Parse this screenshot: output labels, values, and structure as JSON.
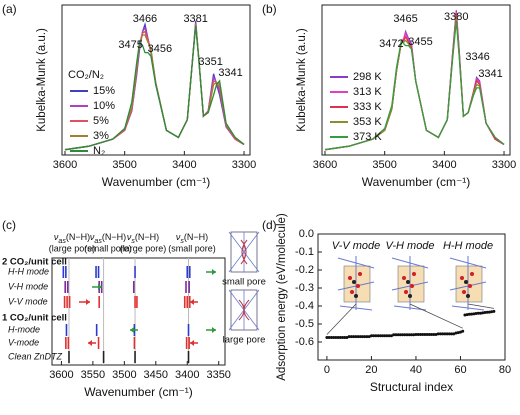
{
  "chart_data": [
    {
      "type": "line",
      "label": "(a)",
      "xlabel": "Wavenumber (cm⁻¹)",
      "ylabel": "Kubelka-Munk (a.u.)",
      "xlim": [
        3605,
        3290
      ],
      "xticks": [
        3600,
        3500,
        3400,
        3300
      ],
      "ylim": [
        0,
        0.85
      ],
      "legend_title": "CO₂/N₂",
      "legend": "lower left",
      "peak_labels": [
        3475,
        3466,
        3456,
        3381,
        3351,
        3341
      ],
      "x": [
        3600,
        3560,
        3520,
        3500,
        3488,
        3480,
        3475,
        3470,
        3466,
        3461,
        3456,
        3448,
        3430,
        3410,
        3395,
        3386,
        3381,
        3376,
        3368,
        3360,
        3351,
        3346,
        3341,
        3330,
        3315,
        3300
      ],
      "series": [
        {
          "name": "15%",
          "color": "#4040c0",
          "values": [
            0.03,
            0.05,
            0.09,
            0.14,
            0.25,
            0.45,
            0.6,
            0.7,
            0.74,
            0.66,
            0.58,
            0.4,
            0.14,
            0.1,
            0.2,
            0.55,
            0.76,
            0.55,
            0.22,
            0.25,
            0.46,
            0.4,
            0.34,
            0.16,
            0.09,
            0.06
          ]
        },
        {
          "name": "10%",
          "color": "#b040c0",
          "values": [
            0.03,
            0.05,
            0.09,
            0.14,
            0.25,
            0.46,
            0.62,
            0.7,
            0.72,
            0.66,
            0.59,
            0.41,
            0.14,
            0.1,
            0.2,
            0.55,
            0.75,
            0.55,
            0.22,
            0.25,
            0.44,
            0.41,
            0.36,
            0.16,
            0.09,
            0.06
          ]
        },
        {
          "name": "5%",
          "color": "#e05060",
          "values": [
            0.03,
            0.05,
            0.09,
            0.14,
            0.26,
            0.48,
            0.63,
            0.69,
            0.7,
            0.65,
            0.6,
            0.41,
            0.14,
            0.1,
            0.2,
            0.55,
            0.74,
            0.55,
            0.22,
            0.25,
            0.42,
            0.41,
            0.38,
            0.17,
            0.09,
            0.06
          ]
        },
        {
          "name": "3%",
          "color": "#a08030",
          "values": [
            0.03,
            0.05,
            0.09,
            0.15,
            0.27,
            0.49,
            0.64,
            0.68,
            0.68,
            0.64,
            0.6,
            0.41,
            0.14,
            0.1,
            0.2,
            0.55,
            0.74,
            0.55,
            0.22,
            0.24,
            0.4,
            0.41,
            0.4,
            0.17,
            0.1,
            0.06
          ]
        },
        {
          "name": "N₂",
          "color": "#2e8b3a",
          "values": [
            0.03,
            0.05,
            0.09,
            0.15,
            0.3,
            0.52,
            0.64,
            0.62,
            0.58,
            0.58,
            0.56,
            0.4,
            0.14,
            0.1,
            0.2,
            0.55,
            0.73,
            0.55,
            0.22,
            0.24,
            0.34,
            0.4,
            0.42,
            0.18,
            0.1,
            0.06
          ]
        }
      ]
    },
    {
      "type": "line",
      "label": "(b)",
      "xlabel": "Wavenumber (cm⁻¹)",
      "ylabel": "Kubelka-Munk (a.u.)",
      "xlim": [
        3605,
        3290
      ],
      "xticks": [
        3600,
        3500,
        3400,
        3300
      ],
      "ylim": [
        0,
        0.85
      ],
      "legend": "lower left",
      "peak_labels": [
        3472,
        3465,
        3455,
        3380,
        3346,
        3341
      ],
      "x": [
        3600,
        3560,
        3520,
        3500,
        3488,
        3480,
        3472,
        3468,
        3465,
        3460,
        3455,
        3448,
        3430,
        3410,
        3395,
        3386,
        3380,
        3375,
        3368,
        3360,
        3351,
        3346,
        3341,
        3330,
        3315,
        3300
      ],
      "series": [
        {
          "name": "298 K",
          "color": "#8a3cc8",
          "values": [
            0.03,
            0.05,
            0.09,
            0.14,
            0.26,
            0.48,
            0.64,
            0.66,
            0.7,
            0.66,
            0.63,
            0.42,
            0.14,
            0.1,
            0.2,
            0.58,
            0.82,
            0.58,
            0.22,
            0.24,
            0.36,
            0.44,
            0.42,
            0.18,
            0.09,
            0.06
          ]
        },
        {
          "name": "313 K",
          "color": "#e040c0",
          "values": [
            0.03,
            0.05,
            0.09,
            0.14,
            0.26,
            0.48,
            0.64,
            0.66,
            0.69,
            0.65,
            0.62,
            0.42,
            0.14,
            0.1,
            0.2,
            0.58,
            0.81,
            0.58,
            0.22,
            0.24,
            0.36,
            0.43,
            0.41,
            0.18,
            0.09,
            0.06
          ]
        },
        {
          "name": "333 K",
          "color": "#e03050",
          "values": [
            0.03,
            0.05,
            0.09,
            0.14,
            0.26,
            0.48,
            0.64,
            0.65,
            0.67,
            0.64,
            0.61,
            0.42,
            0.14,
            0.1,
            0.2,
            0.57,
            0.8,
            0.57,
            0.22,
            0.24,
            0.36,
            0.42,
            0.4,
            0.18,
            0.09,
            0.06
          ]
        },
        {
          "name": "353 K",
          "color": "#8c8c30",
          "values": [
            0.03,
            0.05,
            0.09,
            0.14,
            0.26,
            0.48,
            0.64,
            0.64,
            0.65,
            0.63,
            0.6,
            0.42,
            0.14,
            0.1,
            0.2,
            0.56,
            0.78,
            0.56,
            0.22,
            0.24,
            0.35,
            0.4,
            0.39,
            0.18,
            0.1,
            0.06
          ]
        },
        {
          "name": "373 K",
          "color": "#3a9a40",
          "values": [
            0.03,
            0.05,
            0.09,
            0.15,
            0.28,
            0.5,
            0.65,
            0.63,
            0.62,
            0.62,
            0.6,
            0.42,
            0.14,
            0.1,
            0.2,
            0.55,
            0.76,
            0.55,
            0.22,
            0.24,
            0.34,
            0.38,
            0.38,
            0.18,
            0.1,
            0.06
          ]
        }
      ]
    },
    {
      "type": "stick",
      "label": "(c)",
      "xlabel": "Wavenumber (cm⁻¹)",
      "xlim": [
        3615,
        3340
      ],
      "xticks": [
        3600,
        3550,
        3500,
        3450,
        3400,
        3350
      ],
      "column_headers": [
        {
          "symbol": "ν",
          "sub": "as",
          "bond": "(N−H)",
          "pore": "(large pore)"
        },
        {
          "symbol": "ν",
          "sub": "as",
          "bond": "(N−H)",
          "pore": "(small pore)"
        },
        {
          "symbol": "ν",
          "sub": "s",
          "bond": "(N−H)",
          "pore": "(large pore)"
        },
        {
          "symbol": "ν",
          "sub": "s",
          "bond": "(N−H)",
          "pore": "(small pore)"
        }
      ],
      "groups": [
        {
          "title": "2 CO₂/unit cell",
          "rows": [
            {
              "name": "H-H mode",
              "color": "#2a3bd0",
              "positions": [
                3597,
                3593,
                3545,
                3541,
                3483,
                3400,
                3396
              ]
            },
            {
              "name": "V-H mode",
              "color": "#7a2c9a",
              "positions": [
                3594,
                3590,
                3540,
                3536,
                3485,
                3402,
                3397
              ]
            },
            {
              "name": "V-V mode",
              "color": "#e03030",
              "positions": [
                3595,
                3591,
                3587,
                3540,
                3483,
                3480,
                3404,
                3400,
                3396
              ]
            }
          ]
        },
        {
          "title": "1 CO₂/unit cell",
          "rows": [
            {
              "name": "H-mode",
              "color": "#2a3bd0",
              "positions": [
                3592,
                3544,
                3484,
                3398
              ]
            },
            {
              "name": "V-mode",
              "color": "#e03030",
              "positions": [
                3593,
                3589,
                3541,
                3484,
                3401,
                3397
              ]
            },
            {
              "name": "Clean ZnDTZ",
              "color": "#222222",
              "positions": [
                3588,
                3533,
                3483,
                3398
              ]
            }
          ]
        }
      ],
      "structures": [
        "small pore",
        "large pore"
      ]
    },
    {
      "type": "scatter",
      "label": "(d)",
      "xlabel": "Structural index",
      "ylabel": "Adsorption energy (eV/molecule)",
      "xlim": [
        -4,
        80
      ],
      "xticks": [
        0,
        20,
        40,
        60,
        80
      ],
      "ylim": [
        -0.7,
        0
      ],
      "yticks": [
        {
          "value": 0,
          "label": "0.0"
        },
        -0.1,
        -0.2,
        -0.3,
        -0.4,
        -0.5,
        -0.6
      ],
      "color": "#111111",
      "insets": [
        "V-V mode",
        "V-H mode",
        "H-H mode"
      ],
      "x": [
        0,
        1,
        2,
        3,
        4,
        5,
        6,
        7,
        8,
        9,
        10,
        11,
        12,
        13,
        14,
        15,
        16,
        17,
        18,
        19,
        20,
        21,
        22,
        23,
        24,
        25,
        26,
        27,
        28,
        29,
        30,
        31,
        32,
        33,
        34,
        35,
        36,
        37,
        38,
        39,
        40,
        41,
        42,
        43,
        44,
        45,
        46,
        47,
        48,
        49,
        50,
        51,
        52,
        53,
        54,
        55,
        56,
        57,
        58,
        59,
        60,
        61,
        62,
        63,
        64,
        65,
        66,
        67,
        68,
        69,
        70,
        71,
        72,
        73,
        74,
        75
      ],
      "values": [
        -0.575,
        -0.575,
        -0.575,
        -0.575,
        -0.575,
        -0.575,
        -0.575,
        -0.575,
        -0.575,
        -0.575,
        -0.57,
        -0.57,
        -0.57,
        -0.57,
        -0.57,
        -0.57,
        -0.57,
        -0.57,
        -0.57,
        -0.57,
        -0.565,
        -0.565,
        -0.565,
        -0.565,
        -0.565,
        -0.565,
        -0.565,
        -0.565,
        -0.565,
        -0.565,
        -0.56,
        -0.56,
        -0.56,
        -0.56,
        -0.56,
        -0.56,
        -0.56,
        -0.56,
        -0.56,
        -0.56,
        -0.558,
        -0.558,
        -0.558,
        -0.558,
        -0.558,
        -0.558,
        -0.558,
        -0.558,
        -0.558,
        -0.558,
        -0.555,
        -0.555,
        -0.555,
        -0.555,
        -0.555,
        -0.555,
        -0.555,
        -0.555,
        -0.55,
        -0.548,
        -0.545,
        -0.54,
        -0.45,
        -0.448,
        -0.446,
        -0.445,
        -0.444,
        -0.442,
        -0.44,
        -0.44,
        -0.438,
        -0.436,
        -0.435,
        -0.434,
        -0.432,
        -0.43
      ]
    }
  ]
}
